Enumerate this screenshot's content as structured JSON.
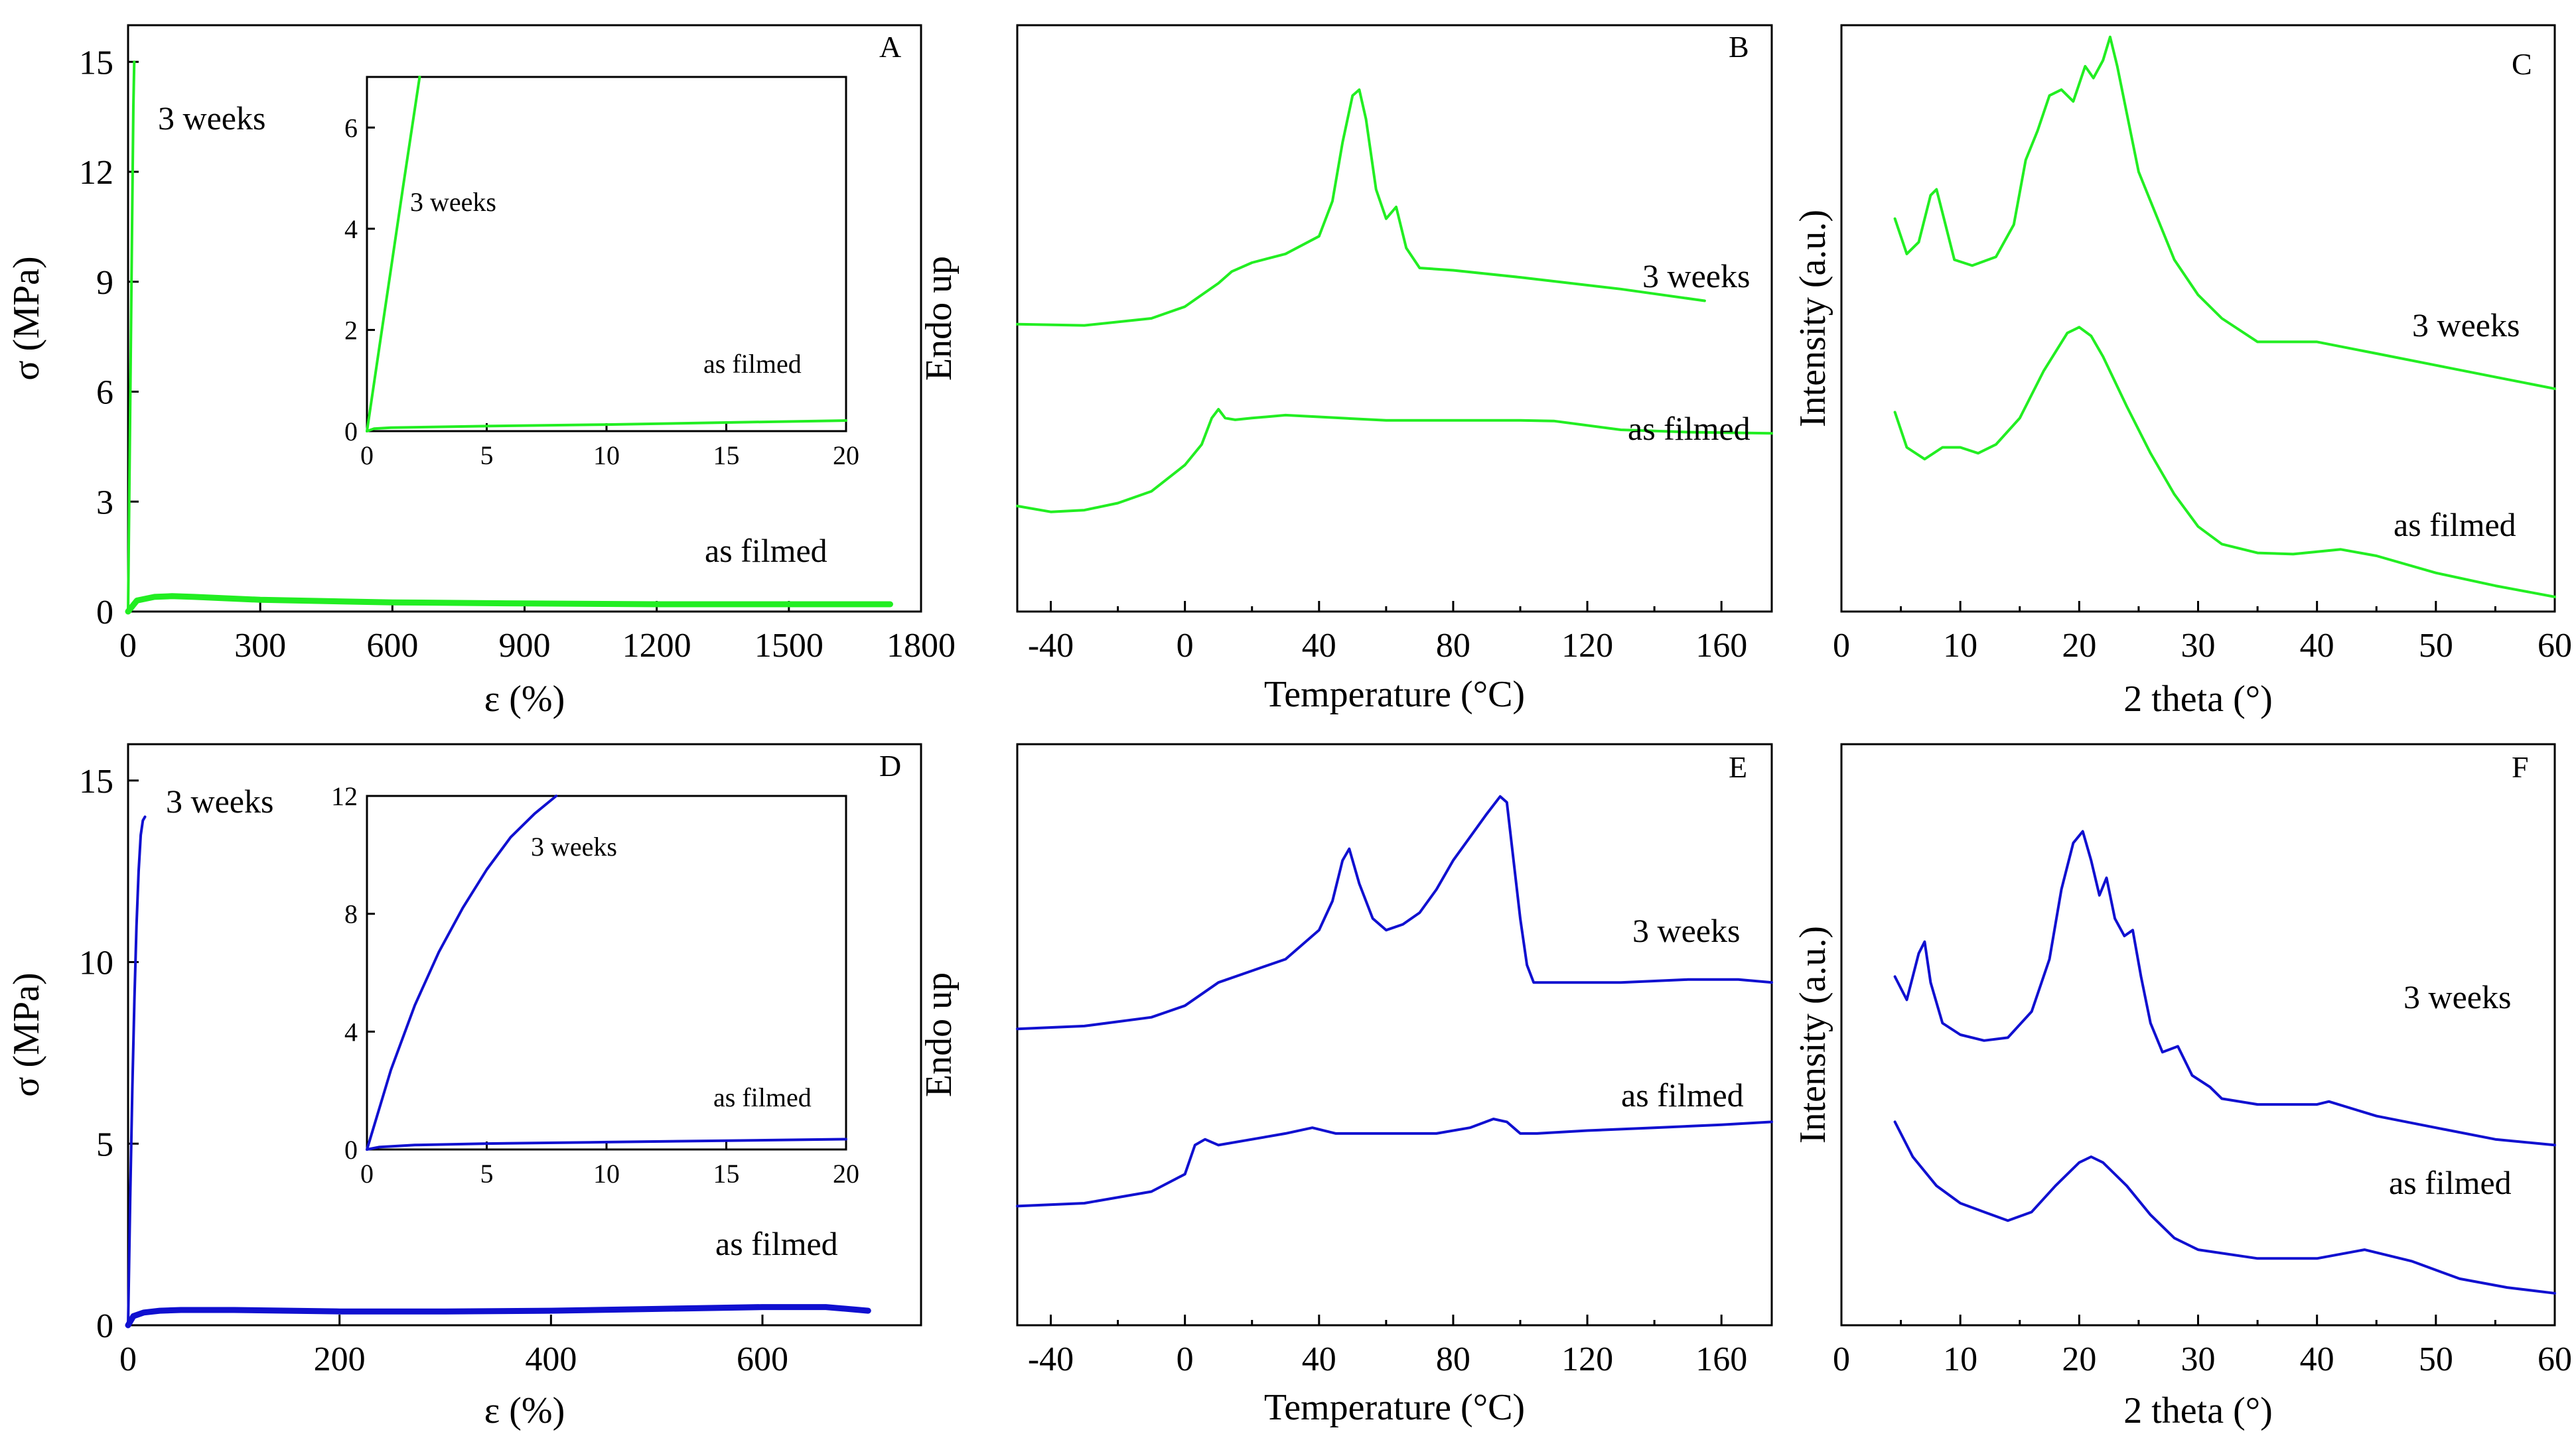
{
  "colors": {
    "green": "#22ee22",
    "blue": "#1010d0"
  },
  "chart_data": [
    {
      "id": "A",
      "type": "line",
      "letter": "A",
      "xlabel": "ε (%)",
      "ylabel": "σ (MPa)",
      "xlim": [
        0,
        1800
      ],
      "ylim": [
        0,
        16
      ],
      "xticks": [
        0,
        300,
        600,
        900,
        1200,
        1500,
        1800
      ],
      "yticks": [
        0,
        3,
        6,
        9,
        12,
        15
      ],
      "color": "green",
      "annotations": [
        {
          "text": "3 weeks"
        },
        {
          "text": "as filmed"
        }
      ],
      "series": [
        {
          "name": "3 weeks",
          "x": [
            0,
            3,
            6,
            9,
            12,
            14
          ],
          "y": [
            0,
            3.5,
            7,
            10.5,
            13.8,
            15
          ]
        },
        {
          "name": "as filmed",
          "x": [
            0,
            20,
            60,
            100,
            150,
            300,
            600,
            900,
            1200,
            1500,
            1730
          ],
          "y": [
            0,
            0.3,
            0.4,
            0.42,
            0.4,
            0.32,
            0.25,
            0.22,
            0.2,
            0.2,
            0.2
          ]
        }
      ],
      "inset": {
        "xlim": [
          0,
          20
        ],
        "ylim": [
          0,
          7
        ],
        "xticks": [
          0,
          5,
          10,
          15,
          20
        ],
        "yticks": [
          0,
          2,
          4,
          6
        ],
        "annotations": [
          {
            "text": "3 weeks"
          },
          {
            "text": "as filmed"
          }
        ],
        "series": [
          {
            "name": "3 weeks",
            "x": [
              0,
              0.5,
              1,
              1.5,
              2.2
            ],
            "y": [
              0,
              1.6,
              3.2,
              4.8,
              7
            ]
          },
          {
            "name": "as filmed",
            "x": [
              0,
              0.3,
              1,
              5,
              10,
              15,
              20
            ],
            "y": [
              0,
              0.05,
              0.07,
              0.1,
              0.13,
              0.17,
              0.21
            ]
          }
        ]
      }
    },
    {
      "id": "B",
      "type": "line",
      "letter": "B",
      "xlabel": "Temperature (°C)",
      "ylabel": "Endo up",
      "xlim": [
        -50,
        175
      ],
      "ylim": [
        0,
        100
      ],
      "xticks": [
        -40,
        0,
        40,
        80,
        120,
        160
      ],
      "yticks": [],
      "color": "green",
      "annotations": [
        {
          "text": "3 weeks"
        },
        {
          "text": "as filmed"
        }
      ],
      "series": [
        {
          "name": "3 weeks",
          "x": [
            -50,
            -30,
            -10,
            0,
            5,
            10,
            14,
            20,
            30,
            40,
            44,
            47,
            50,
            52,
            54,
            57,
            60,
            63,
            66,
            70,
            80,
            100,
            130,
            155
          ],
          "y": [
            49,
            48.8,
            50,
            52,
            54,
            56,
            58,
            59.5,
            61,
            64,
            70,
            80,
            88,
            89,
            84,
            72,
            67,
            69,
            62,
            58.6,
            58.2,
            57,
            55,
            53
          ]
        },
        {
          "name": "as filmed",
          "x": [
            -50,
            -40,
            -30,
            -20,
            -10,
            0,
            5,
            8,
            10,
            12,
            15,
            20,
            30,
            40,
            60,
            80,
            100,
            110,
            130,
            150,
            175
          ],
          "y": [
            18,
            17,
            17.3,
            18.5,
            20.5,
            25,
            28.5,
            33,
            34.5,
            33,
            32.7,
            33,
            33.5,
            33.2,
            32.6,
            32.6,
            32.6,
            32.5,
            31,
            30.6,
            30.4
          ]
        }
      ]
    },
    {
      "id": "C",
      "type": "line",
      "letter": "C",
      "xlabel": "2 theta  (°)",
      "ylabel": "Intensity  (a.u.)",
      "xlim": [
        0,
        60
      ],
      "ylim": [
        0,
        100
      ],
      "xticks": [
        0,
        10,
        20,
        30,
        40,
        50,
        60
      ],
      "yticks": [],
      "color": "green",
      "annotations": [
        {
          "text": "3 weeks"
        },
        {
          "text": "as filmed"
        }
      ],
      "series": [
        {
          "name": "3 weeks",
          "x": [
            4.5,
            5.5,
            6.5,
            7.5,
            8,
            8.5,
            9.5,
            11,
            13,
            14.5,
            15.5,
            16.5,
            17.5,
            18.5,
            19.5,
            20.5,
            21.2,
            22,
            22.6,
            23.2,
            24,
            25,
            26,
            28,
            30,
            32,
            35,
            40,
            45,
            50,
            55,
            60
          ],
          "y": [
            67,
            61,
            63,
            71,
            72,
            68,
            60,
            59,
            60.5,
            66,
            77,
            82,
            88,
            89,
            87,
            93,
            91,
            94,
            98,
            93,
            85,
            75,
            70,
            60,
            54,
            50,
            46,
            46,
            44,
            42,
            40,
            38
          ]
        },
        {
          "name": "as filmed",
          "x": [
            4.5,
            5.5,
            7,
            8.5,
            10,
            11.5,
            13,
            15,
            17,
            19,
            20,
            21,
            22,
            24,
            26,
            28,
            30,
            32,
            35,
            38,
            42,
            45,
            50,
            55,
            60
          ],
          "y": [
            34,
            28,
            26,
            28,
            28,
            27,
            28.5,
            33,
            41,
            47.5,
            48.5,
            47,
            43.5,
            35,
            27,
            20,
            14.5,
            11.5,
            10,
            9.8,
            10.6,
            9.5,
            6.6,
            4.4,
            2.5
          ]
        }
      ]
    },
    {
      "id": "D",
      "type": "line",
      "letter": "D",
      "xlabel": "ε (%)",
      "ylabel": "σ (MPa)",
      "xlim": [
        0,
        750
      ],
      "ylim": [
        0,
        16
      ],
      "xticks": [
        0,
        200,
        400,
        600
      ],
      "yticks": [
        0,
        5,
        10,
        15
      ],
      "color": "blue",
      "annotations": [
        {
          "text": "3 weeks"
        },
        {
          "text": "as filmed"
        }
      ],
      "series": [
        {
          "name": "3 weeks",
          "x": [
            0,
            2,
            4,
            6,
            8,
            10,
            12,
            14,
            16
          ],
          "y": [
            0,
            3.5,
            6.5,
            9,
            11,
            12.5,
            13.5,
            13.9,
            14
          ]
        },
        {
          "name": "as filmed",
          "x": [
            0,
            5,
            15,
            30,
            50,
            100,
            200,
            300,
            400,
            500,
            600,
            660,
            700
          ],
          "y": [
            0,
            0.25,
            0.35,
            0.4,
            0.42,
            0.42,
            0.38,
            0.38,
            0.4,
            0.45,
            0.5,
            0.5,
            0.4
          ]
        }
      ],
      "inset": {
        "xlim": [
          0,
          20
        ],
        "ylim": [
          0,
          12
        ],
        "xticks": [
          0,
          5,
          10,
          15,
          20
        ],
        "yticks": [
          0,
          4,
          8,
          12
        ],
        "annotations": [
          {
            "text": "3 weeks"
          },
          {
            "text": "as filmed"
          }
        ],
        "series": [
          {
            "name": "3 weeks",
            "x": [
              0,
              1,
              2,
              3,
              4,
              5,
              6,
              7,
              7.9
            ],
            "y": [
              0,
              2.7,
              4.9,
              6.7,
              8.2,
              9.5,
              10.6,
              11.4,
              12
            ]
          },
          {
            "name": "as filmed",
            "x": [
              0,
              0.5,
              2,
              5,
              10,
              15,
              20
            ],
            "y": [
              0,
              0.08,
              0.15,
              0.2,
              0.25,
              0.3,
              0.35
            ]
          }
        ]
      }
    },
    {
      "id": "E",
      "type": "line",
      "letter": "E",
      "xlabel": "Temperature (°C)",
      "ylabel": "Endo up",
      "xlim": [
        -50,
        175
      ],
      "ylim": [
        0,
        100
      ],
      "xticks": [
        -40,
        0,
        40,
        80,
        120,
        160
      ],
      "yticks": [],
      "color": "blue",
      "annotations": [
        {
          "text": "3 weeks"
        },
        {
          "text": "as filmed"
        }
      ],
      "series": [
        {
          "name": "3 weeks",
          "x": [
            -50,
            -30,
            -10,
            0,
            10,
            20,
            30,
            40,
            44,
            47,
            49,
            52,
            56,
            60,
            65,
            70,
            75,
            80,
            85,
            90,
            94,
            96,
            98,
            100,
            102,
            104,
            110,
            130,
            150,
            165,
            175
          ],
          "y": [
            51,
            51.5,
            53,
            55,
            59,
            61,
            63,
            68,
            73,
            80,
            82,
            76,
            70,
            68,
            69,
            71,
            75,
            80,
            84,
            88,
            91,
            90,
            80,
            70,
            62,
            59,
            59,
            59,
            59.5,
            59.5,
            59
          ]
        },
        {
          "name": "as filmed",
          "x": [
            -50,
            -30,
            -10,
            0,
            3,
            6,
            10,
            20,
            30,
            38,
            45,
            60,
            75,
            85,
            92,
            96,
            100,
            105,
            120,
            140,
            160,
            175
          ],
          "y": [
            20.5,
            21,
            23,
            26,
            31,
            32,
            31,
            32,
            33,
            34,
            33,
            33,
            33,
            34,
            35.5,
            35,
            33,
            33,
            33.5,
            34,
            34.5,
            35
          ]
        }
      ]
    },
    {
      "id": "F",
      "type": "line",
      "letter": "F",
      "xlabel": "2 theta  (°)",
      "ylabel": "Intensity  (a.u.)",
      "xlim": [
        0,
        60
      ],
      "ylim": [
        0,
        100
      ],
      "xticks": [
        0,
        10,
        20,
        30,
        40,
        50,
        60
      ],
      "yticks": [],
      "color": "blue",
      "annotations": [
        {
          "text": "3 weeks"
        },
        {
          "text": "as filmed"
        }
      ],
      "series": [
        {
          "name": "3 weeks",
          "x": [
            4.5,
            5.5,
            6.5,
            7,
            7.5,
            8.5,
            10,
            12,
            14,
            16,
            17.5,
            18.5,
            19.5,
            20.3,
            21,
            21.7,
            22.3,
            23,
            23.8,
            24.5,
            25.2,
            26,
            27,
            28.3,
            29.5,
            31,
            32,
            35,
            40,
            41,
            45,
            50,
            55,
            60
          ],
          "y": [
            60,
            56,
            64,
            66,
            59,
            52,
            50,
            49,
            49.5,
            54,
            63,
            75,
            83,
            85,
            80,
            74,
            77,
            70,
            67,
            68,
            60,
            52,
            47,
            48,
            43,
            41,
            39,
            38,
            38,
            38.5,
            36,
            34,
            32,
            31
          ]
        },
        {
          "name": "as filmed",
          "x": [
            4.5,
            6,
            8,
            10,
            12,
            14,
            16,
            18,
            20,
            21,
            22,
            24,
            26,
            28,
            30,
            35,
            40,
            44,
            48,
            52,
            56,
            60
          ],
          "y": [
            35,
            29,
            24,
            21,
            19.5,
            18,
            19.5,
            24,
            28,
            29,
            28,
            24,
            19,
            15,
            13,
            11.5,
            11.5,
            13,
            11,
            8,
            6.5,
            5.5
          ]
        }
      ]
    }
  ]
}
